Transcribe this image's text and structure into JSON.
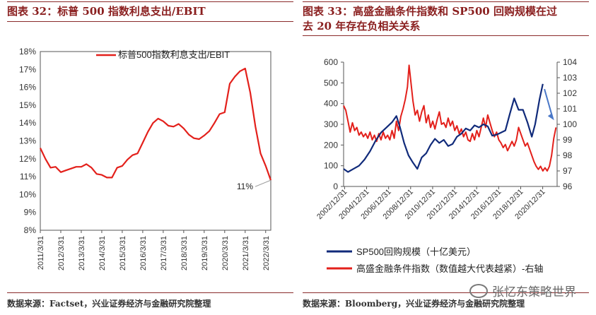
{
  "left_panel": {
    "title": "图表 32：标普 500 指数利息支出/EBIT",
    "source": "数据来源：Factset，兴业证券经济与金融研究院整理"
  },
  "right_panel": {
    "title_line1": "图表 33：高盛金融条件指数和 SP500 回购规模在过",
    "title_line2": "去 20 年存在负相关关系",
    "source": "数据来源：Bloomberg，兴业证券经济与金融研究院整理"
  },
  "watermark": "张忆东策略世界",
  "colors": {
    "red": "#e3201b",
    "navy": "#102a7a",
    "arrow": "#4a78c8",
    "title": "#8a1f1f"
  },
  "chart_data": [
    {
      "type": "line",
      "title": "图表 32：标普 500 指数利息支出/EBIT",
      "ylim": [
        8,
        18
      ],
      "yticks": [
        "8%",
        "9%",
        "10%",
        "11%",
        "12%",
        "13%",
        "14%",
        "15%",
        "16%",
        "17%",
        "18%"
      ],
      "xticks": [
        "2011/3/31",
        "2012/3/31",
        "2013/3/31",
        "2014/3/31",
        "2015/3/31",
        "2016/3/31",
        "2017/3/31",
        "2018/3/31",
        "2019/3/31",
        "2020/3/31",
        "2021/3/31",
        "2022/3/31"
      ],
      "xlim": [
        2011.0,
        2022.25
      ],
      "legend": "top-right",
      "annotation": {
        "text": "11%",
        "x": 2022.25,
        "y": 10.8
      },
      "series": [
        {
          "name": "标普500指数利息支出/EBIT",
          "color": "#e3201b",
          "points": [
            [
              2011.0,
              12.6
            ],
            [
              2011.25,
              12.0
            ],
            [
              2011.5,
              11.5
            ],
            [
              2011.75,
              11.55
            ],
            [
              2012.0,
              11.25
            ],
            [
              2012.25,
              11.35
            ],
            [
              2012.5,
              11.45
            ],
            [
              2012.75,
              11.55
            ],
            [
              2013.0,
              11.55
            ],
            [
              2013.25,
              11.7
            ],
            [
              2013.5,
              11.5
            ],
            [
              2013.75,
              11.15
            ],
            [
              2014.0,
              11.1
            ],
            [
              2014.25,
              10.95
            ],
            [
              2014.5,
              10.95
            ],
            [
              2014.75,
              11.5
            ],
            [
              2015.0,
              11.6
            ],
            [
              2015.25,
              11.95
            ],
            [
              2015.5,
              12.2
            ],
            [
              2015.75,
              12.3
            ],
            [
              2016.0,
              12.9
            ],
            [
              2016.25,
              13.5
            ],
            [
              2016.5,
              14.0
            ],
            [
              2016.75,
              14.25
            ],
            [
              2017.0,
              14.1
            ],
            [
              2017.25,
              13.85
            ],
            [
              2017.5,
              13.8
            ],
            [
              2017.75,
              13.95
            ],
            [
              2018.0,
              13.7
            ],
            [
              2018.25,
              13.35
            ],
            [
              2018.5,
              13.15
            ],
            [
              2018.75,
              13.1
            ],
            [
              2019.0,
              13.3
            ],
            [
              2019.25,
              13.55
            ],
            [
              2019.5,
              14.0
            ],
            [
              2019.75,
              14.5
            ],
            [
              2020.0,
              14.6
            ],
            [
              2020.25,
              16.2
            ],
            [
              2020.5,
              16.6
            ],
            [
              2020.75,
              16.9
            ],
            [
              2021.0,
              17.05
            ],
            [
              2021.25,
              15.7
            ],
            [
              2021.5,
              13.8
            ],
            [
              2021.75,
              12.3
            ],
            [
              2022.0,
              11.6
            ],
            [
              2022.25,
              10.8
            ]
          ]
        }
      ]
    },
    {
      "type": "line",
      "title": "图表 33：高盛金融条件指数和 SP500 回购规模在过去 20 年存在负相关关系",
      "ylim": [
        0,
        600
      ],
      "y2lim": [
        96,
        104
      ],
      "yticks": [
        "0",
        "100",
        "200",
        "300",
        "400",
        "500",
        "600"
      ],
      "y2ticks": [
        "96",
        "97",
        "98",
        "99",
        "100",
        "101",
        "102",
        "103",
        "104"
      ],
      "xticks": [
        "2002/12/31",
        "2004/12/31",
        "2006/12/31",
        "2008/12/31",
        "2010/12/31",
        "2012/12/31",
        "2014/12/31",
        "2016/12/31",
        "2018/12/31",
        "2020/12/31"
      ],
      "xlim": [
        2002.9,
        2022.3
      ],
      "legend": "bottom",
      "series": [
        {
          "name": "SP500回购规模（十亿美元）",
          "color": "#102a7a",
          "axis": "left",
          "points": [
            [
              2002.9,
              85
            ],
            [
              2003.3,
              70
            ],
            [
              2003.8,
              85
            ],
            [
              2004.3,
              100
            ],
            [
              2004.8,
              130
            ],
            [
              2005.3,
              170
            ],
            [
              2005.8,
              220
            ],
            [
              2006.3,
              260
            ],
            [
              2006.8,
              285
            ],
            [
              2007.3,
              310
            ],
            [
              2007.7,
              340
            ],
            [
              2008.0,
              290
            ],
            [
              2008.4,
              210
            ],
            [
              2008.8,
              150
            ],
            [
              2009.2,
              115
            ],
            [
              2009.6,
              85
            ],
            [
              2010.0,
              140
            ],
            [
              2010.4,
              160
            ],
            [
              2010.8,
              200
            ],
            [
              2011.2,
              230
            ],
            [
              2011.6,
              210
            ],
            [
              2012.0,
              225
            ],
            [
              2012.4,
              195
            ],
            [
              2012.8,
              205
            ],
            [
              2013.2,
              240
            ],
            [
              2013.6,
              255
            ],
            [
              2014.0,
              280
            ],
            [
              2014.4,
              270
            ],
            [
              2014.8,
              295
            ],
            [
              2015.2,
              285
            ],
            [
              2015.6,
              300
            ],
            [
              2016.0,
              290
            ],
            [
              2016.4,
              245
            ],
            [
              2016.8,
              250
            ],
            [
              2017.2,
              260
            ],
            [
              2017.6,
              270
            ],
            [
              2018.0,
              350
            ],
            [
              2018.4,
              425
            ],
            [
              2018.8,
              370
            ],
            [
              2019.2,
              370
            ],
            [
              2019.6,
              310
            ],
            [
              2020.0,
              240
            ],
            [
              2020.3,
              300
            ],
            [
              2020.7,
              420
            ],
            [
              2021.0,
              495
            ]
          ]
        },
        {
          "name": "高盛金融条件指数（数值越大代表越紧）-右轴",
          "color": "#e3201b",
          "axis": "right",
          "points": [
            [
              2002.9,
              101.2
            ],
            [
              2003.1,
              100.9
            ],
            [
              2003.3,
              100.2
            ],
            [
              2003.5,
              99.5
            ],
            [
              2003.7,
              100.1
            ],
            [
              2003.9,
              99.6
            ],
            [
              2004.1,
              99.8
            ],
            [
              2004.3,
              99.3
            ],
            [
              2004.5,
              99.5
            ],
            [
              2004.7,
              99.2
            ],
            [
              2004.9,
              99.4
            ],
            [
              2005.1,
              99.1
            ],
            [
              2005.3,
              99.5
            ],
            [
              2005.5,
              99.0
            ],
            [
              2005.7,
              99.3
            ],
            [
              2005.9,
              98.9
            ],
            [
              2006.1,
              99.4
            ],
            [
              2006.3,
              99.0
            ],
            [
              2006.5,
              99.5
            ],
            [
              2006.7,
              99.1
            ],
            [
              2006.9,
              99.3
            ],
            [
              2007.1,
              99.0
            ],
            [
              2007.3,
              99.6
            ],
            [
              2007.5,
              99.1
            ],
            [
              2007.7,
              100.2
            ],
            [
              2007.9,
              99.6
            ],
            [
              2008.1,
              100.5
            ],
            [
              2008.3,
              101.0
            ],
            [
              2008.5,
              101.6
            ],
            [
              2008.7,
              102.4
            ],
            [
              2008.85,
              103.8
            ],
            [
              2009.0,
              102.8
            ],
            [
              2009.2,
              101.5
            ],
            [
              2009.4,
              100.6
            ],
            [
              2009.6,
              100.9
            ],
            [
              2009.8,
              100.2
            ],
            [
              2010.0,
              100.8
            ],
            [
              2010.2,
              101.2
            ],
            [
              2010.4,
              100.1
            ],
            [
              2010.6,
              100.6
            ],
            [
              2010.8,
              99.8
            ],
            [
              2011.0,
              100.2
            ],
            [
              2011.2,
              99.7
            ],
            [
              2011.4,
              100.3
            ],
            [
              2011.6,
              100.8
            ],
            [
              2011.8,
              100.0
            ],
            [
              2012.0,
              100.1
            ],
            [
              2012.2,
              99.8
            ],
            [
              2012.4,
              100.4
            ],
            [
              2012.6,
              99.9
            ],
            [
              2012.8,
              100.2
            ],
            [
              2013.0,
              99.6
            ],
            [
              2013.2,
              99.9
            ],
            [
              2013.4,
              99.4
            ],
            [
              2013.6,
              99.7
            ],
            [
              2013.8,
              99.2
            ],
            [
              2014.0,
              99.5
            ],
            [
              2014.2,
              99.0
            ],
            [
              2014.4,
              98.9
            ],
            [
              2014.6,
              99.4
            ],
            [
              2014.8,
              99.0
            ],
            [
              2015.0,
              99.6
            ],
            [
              2015.2,
              99.2
            ],
            [
              2015.4,
              99.8
            ],
            [
              2015.6,
              100.4
            ],
            [
              2015.8,
              99.8
            ],
            [
              2016.0,
              100.6
            ],
            [
              2016.2,
              100.1
            ],
            [
              2016.4,
              99.6
            ],
            [
              2016.6,
              99.2
            ],
            [
              2016.8,
              99.5
            ],
            [
              2017.0,
              99.0
            ],
            [
              2017.2,
              98.8
            ],
            [
              2017.4,
              98.5
            ],
            [
              2017.6,
              98.7
            ],
            [
              2017.8,
              98.3
            ],
            [
              2018.0,
              98.6
            ],
            [
              2018.2,
              98.9
            ],
            [
              2018.4,
              98.6
            ],
            [
              2018.6,
              99.0
            ],
            [
              2018.8,
              99.8
            ],
            [
              2019.0,
              99.4
            ],
            [
              2019.2,
              99.0
            ],
            [
              2019.4,
              98.6
            ],
            [
              2019.6,
              98.8
            ],
            [
              2019.8,
              98.4
            ],
            [
              2020.0,
              98.0
            ],
            [
              2020.2,
              97.6
            ],
            [
              2020.4,
              97.3
            ],
            [
              2020.6,
              97.1
            ],
            [
              2020.8,
              97.3
            ],
            [
              2021.0,
              97.0
            ],
            [
              2021.2,
              97.2
            ],
            [
              2021.4,
              97.0
            ],
            [
              2021.6,
              97.3
            ],
            [
              2021.8,
              98.0
            ],
            [
              2022.0,
              99.1
            ],
            [
              2022.2,
              99.8
            ]
          ]
        }
      ]
    }
  ]
}
